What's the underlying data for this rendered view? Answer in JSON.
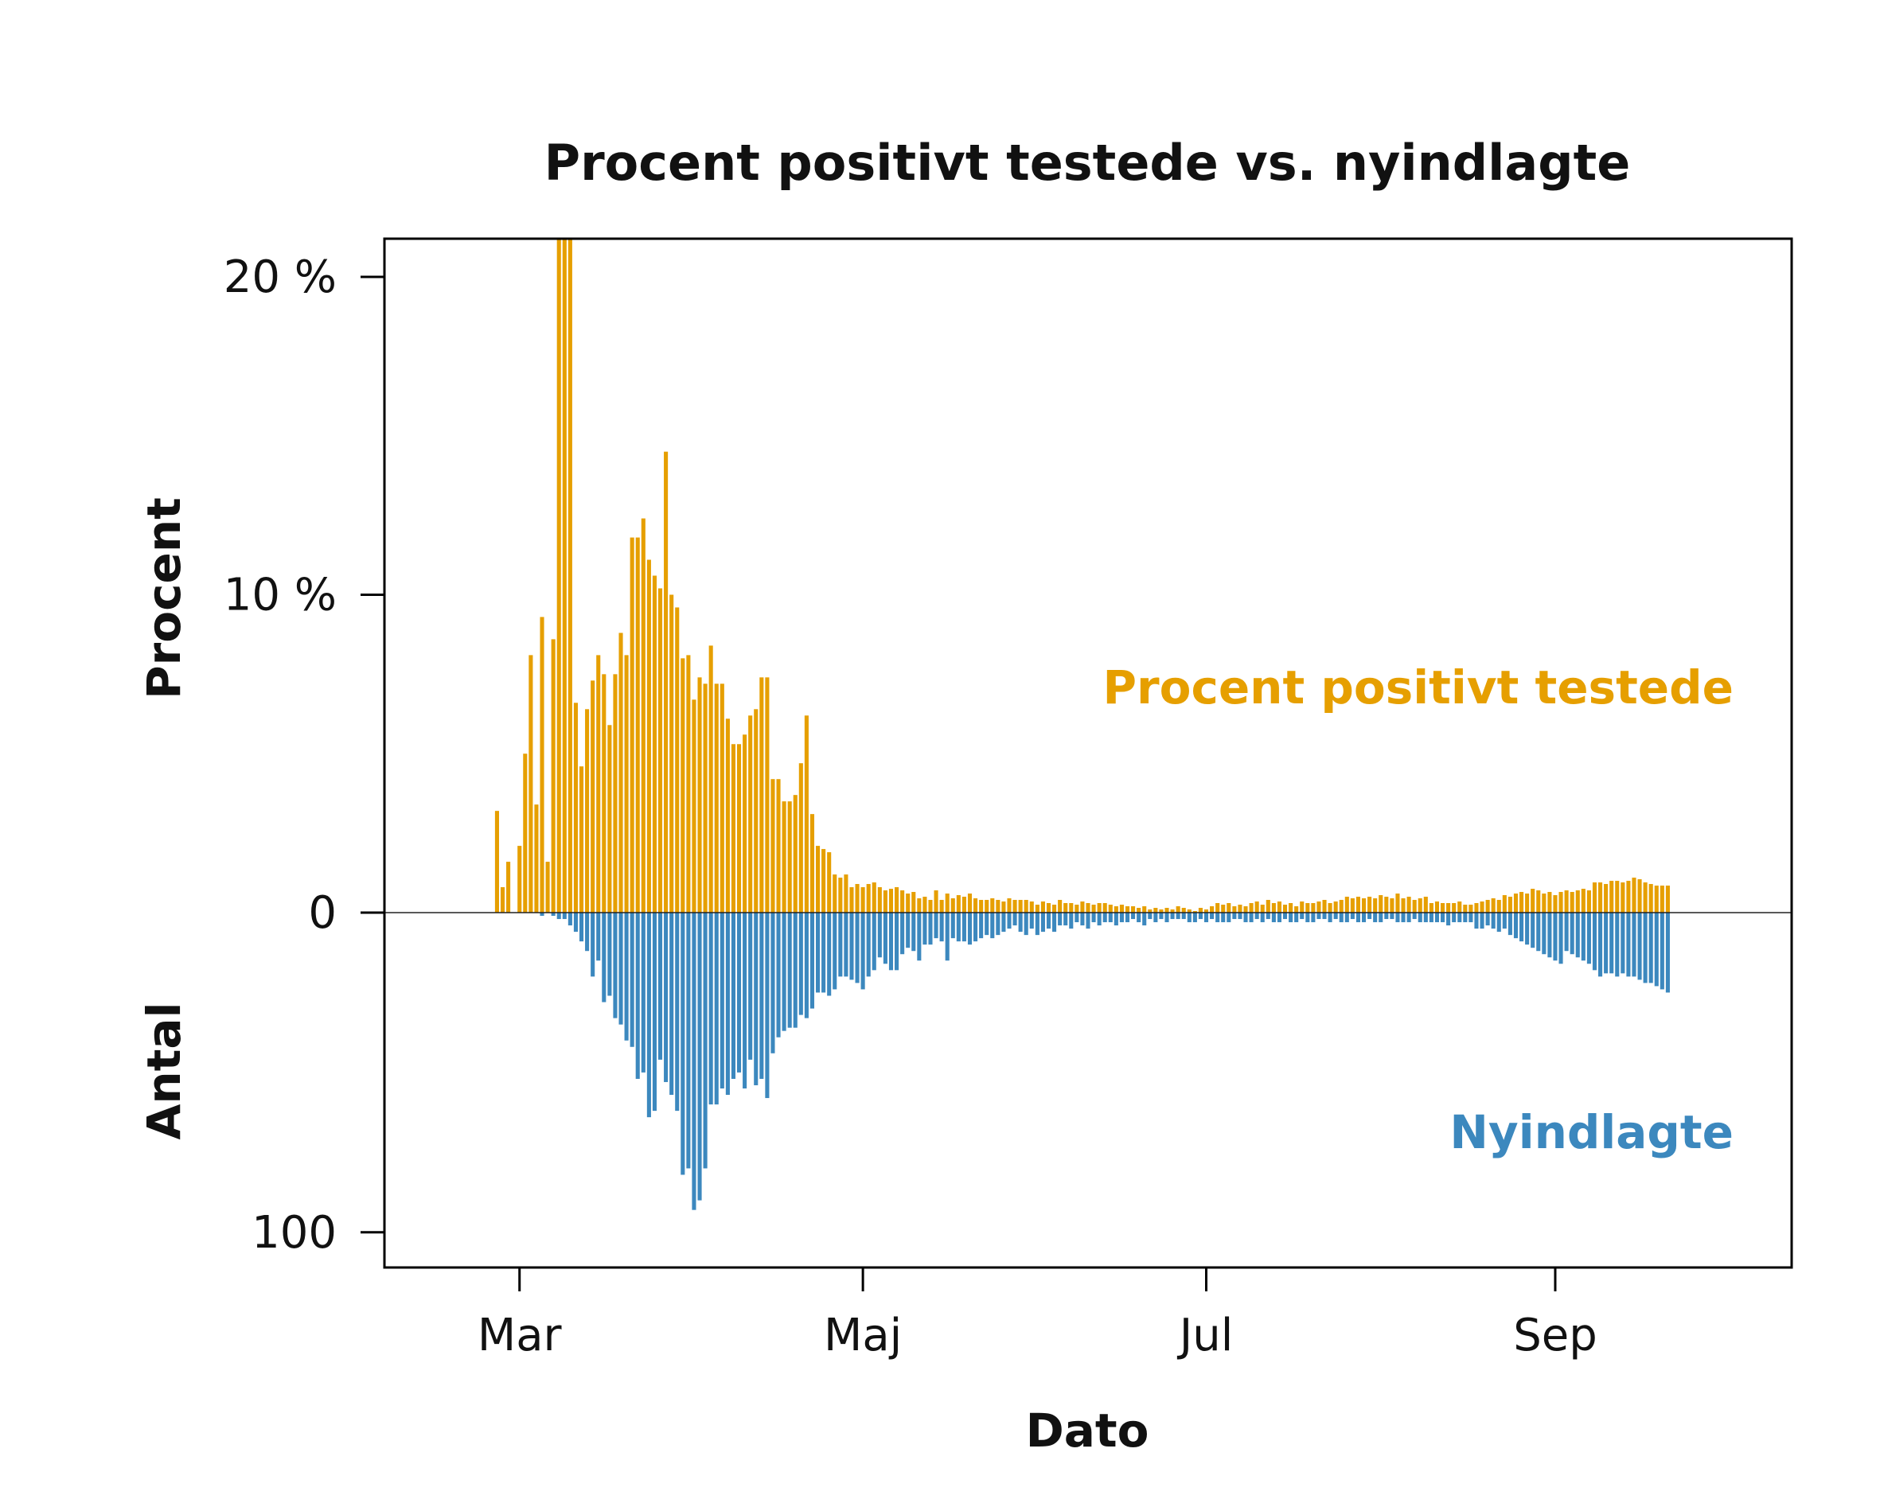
{
  "chart_data": {
    "type": "bar",
    "title": "Procent positivt testede vs. nyindlagte",
    "xlabel": "Dato",
    "ylabel_top": "Procent",
    "ylabel_bottom": "Antal",
    "x_start": "2020-02-26",
    "x_ticks": [
      {
        "date": "2020-03-01",
        "label": "Mar"
      },
      {
        "date": "2020-05-01",
        "label": "Maj"
      },
      {
        "date": "2020-07-01",
        "label": "Jul"
      },
      {
        "date": "2020-09-01",
        "label": "Sep"
      }
    ],
    "xlim": [
      "2020-02-06",
      "2020-10-13"
    ],
    "y_top_ticks": [
      {
        "value": 0,
        "label": "0"
      },
      {
        "value": 10,
        "label": "10 %"
      },
      {
        "value": 20,
        "label": "20 %"
      }
    ],
    "y_bottom_ticks": [
      {
        "value": 100,
        "label": "100"
      }
    ],
    "ylim_percent": [
      0,
      21.2
    ],
    "ylim_count": [
      0,
      111
    ],
    "grid": false,
    "series": [
      {
        "name": "Procent positivt testede",
        "color": "#E69F00",
        "values": [
          3.2,
          0.8,
          1.6,
          0,
          2.1,
          5,
          8.1,
          3.4,
          9.3,
          1.6,
          8.6,
          21.2,
          21.2,
          21.2,
          6.6,
          4.6,
          6.4,
          7.3,
          8.1,
          7.5,
          5.9,
          7.5,
          8.8,
          8.1,
          11.8,
          11.8,
          12.4,
          11.1,
          10.6,
          10.2,
          14.5,
          10,
          9.6,
          8,
          8.1,
          6.7,
          7.4,
          7.2,
          8.4,
          7.2,
          7.2,
          6.1,
          5.3,
          5.3,
          5.6,
          6.2,
          6.4,
          7.4,
          7.4,
          4.2,
          4.2,
          3.5,
          3.5,
          3.7,
          4.7,
          6.2,
          3.1,
          2.1,
          2,
          1.9,
          1.2,
          1.1,
          1.2,
          0.8,
          0.9,
          0.8,
          0.9,
          0.95,
          0.8,
          0.7,
          0.75,
          0.8,
          0.7,
          0.6,
          0.65,
          0.45,
          0.5,
          0.4,
          0.7,
          0.4,
          0.6,
          0.45,
          0.55,
          0.5,
          0.6,
          0.45,
          0.4,
          0.4,
          0.45,
          0.4,
          0.35,
          0.45,
          0.4,
          0.4,
          0.4,
          0.35,
          0.25,
          0.35,
          0.3,
          0.25,
          0.4,
          0.3,
          0.3,
          0.25,
          0.35,
          0.3,
          0.25,
          0.3,
          0.3,
          0.25,
          0.2,
          0.25,
          0.2,
          0.2,
          0.15,
          0.2,
          0.1,
          0.15,
          0.1,
          0.15,
          0.1,
          0.2,
          0.15,
          0.1,
          0.05,
          0.15,
          0.1,
          0.2,
          0.3,
          0.25,
          0.3,
          0.2,
          0.25,
          0.2,
          0.3,
          0.35,
          0.25,
          0.4,
          0.3,
          0.35,
          0.25,
          0.3,
          0.2,
          0.35,
          0.3,
          0.3,
          0.35,
          0.4,
          0.3,
          0.35,
          0.4,
          0.5,
          0.45,
          0.5,
          0.45,
          0.5,
          0.45,
          0.55,
          0.5,
          0.45,
          0.6,
          0.45,
          0.5,
          0.4,
          0.45,
          0.5,
          0.3,
          0.35,
          0.3,
          0.3,
          0.3,
          0.35,
          0.25,
          0.25,
          0.3,
          0.35,
          0.4,
          0.45,
          0.4,
          0.55,
          0.5,
          0.6,
          0.65,
          0.6,
          0.75,
          0.7,
          0.6,
          0.65,
          0.55,
          0.65,
          0.7,
          0.65,
          0.7,
          0.75,
          0.7,
          0.95,
          0.95,
          0.9,
          1,
          1,
          0.95,
          1,
          1.1,
          1.05,
          0.95,
          0.9,
          0.85,
          0.85,
          0.85
        ]
      },
      {
        "name": "Nyindlagte",
        "color": "#3C88BE",
        "values": [
          0,
          0,
          0,
          0,
          0,
          0,
          0,
          0,
          1,
          0,
          1,
          2,
          2,
          4,
          6,
          9,
          12,
          20,
          15,
          28,
          26,
          33,
          35,
          40,
          42,
          52,
          50,
          64,
          62,
          46,
          53,
          57,
          62,
          82,
          80,
          93,
          90,
          80,
          60,
          60,
          55,
          57,
          52,
          50,
          55,
          46,
          54,
          52,
          58,
          44,
          39,
          37,
          36,
          36,
          32,
          33,
          30,
          25,
          25,
          26,
          24,
          20,
          20,
          21,
          22,
          24,
          20,
          18,
          14,
          16,
          18,
          18,
          13,
          11,
          12,
          15,
          10,
          10,
          8,
          9,
          15,
          8,
          9,
          9,
          10,
          9,
          8,
          7,
          8,
          7,
          6,
          5,
          4,
          6,
          7,
          5,
          7,
          6,
          5,
          6,
          4,
          4,
          5,
          3,
          4,
          5,
          3,
          4,
          3,
          3,
          4,
          3,
          3,
          2,
          3,
          4,
          2,
          3,
          2,
          3,
          2,
          2,
          2,
          3,
          3,
          2,
          3,
          2,
          3,
          3,
          3,
          2,
          2,
          3,
          3,
          2,
          3,
          2,
          3,
          3,
          2,
          3,
          3,
          2,
          3,
          3,
          2,
          2,
          3,
          2,
          3,
          3,
          2,
          3,
          3,
          2,
          3,
          3,
          2,
          2,
          3,
          3,
          3,
          2,
          3,
          3,
          3,
          3,
          3,
          4,
          3,
          3,
          3,
          3,
          5,
          5,
          4,
          5,
          6,
          5,
          7,
          8,
          9,
          10,
          11,
          12,
          13,
          14,
          15,
          16,
          12,
          13,
          14,
          15,
          16,
          18,
          20,
          19,
          19,
          20,
          19,
          20,
          20,
          21,
          22,
          22,
          23,
          24,
          25
        ]
      }
    ],
    "annotations": [
      {
        "text": "Procent positivt testede",
        "series": "Procent positivt testede"
      },
      {
        "text": "Nyindlagte",
        "series": "Nyindlagte"
      }
    ]
  }
}
